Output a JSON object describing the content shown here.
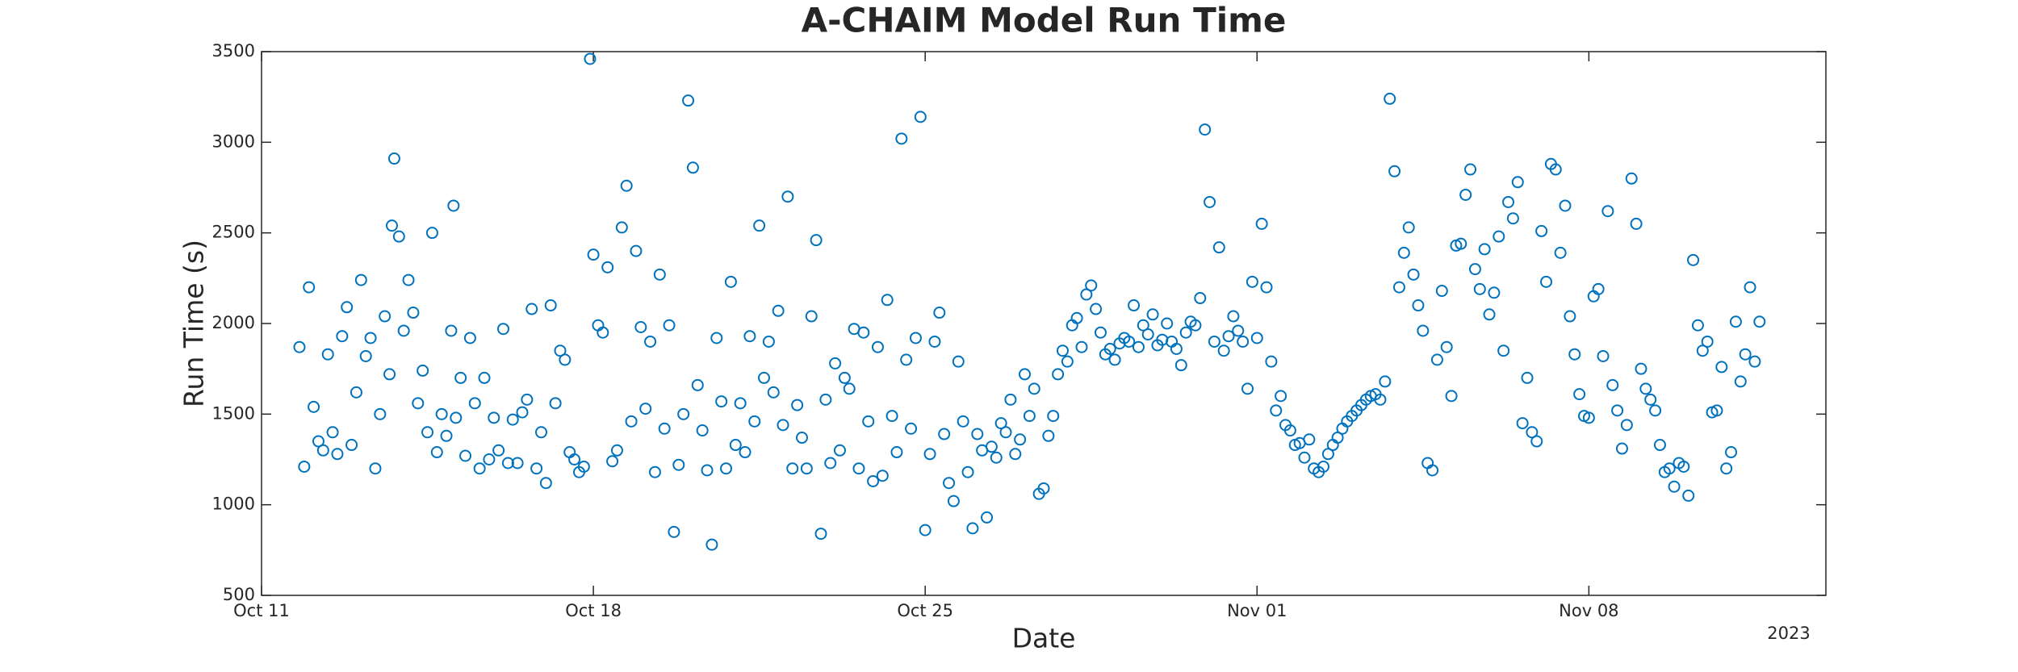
{
  "chart_data": {
    "type": "scatter",
    "title": "A-CHAIM Model Run Time",
    "xlabel": "Date",
    "ylabel": "Run Time (s)",
    "x_year_label": "2023",
    "xlim": [
      0,
      33
    ],
    "ylim": [
      500,
      3500
    ],
    "xticks": [
      {
        "value": 0,
        "label": "Oct 11"
      },
      {
        "value": 7,
        "label": "Oct 18"
      },
      {
        "value": 14,
        "label": "Oct 25"
      },
      {
        "value": 21,
        "label": "Nov 01"
      },
      {
        "value": 28,
        "label": "Nov 08"
      }
    ],
    "yticks": [
      500,
      1000,
      1500,
      2000,
      2500,
      3000,
      3500
    ],
    "grid": false,
    "series": [
      {
        "name": "Run Time",
        "color": "#0072bd",
        "x": [
          0.8,
          0.9,
          1.0,
          1.1,
          1.2,
          1.3,
          1.4,
          1.5,
          1.6,
          1.7,
          1.8,
          1.9,
          2.0,
          2.1,
          2.2,
          2.3,
          2.4,
          2.5,
          2.6,
          2.7,
          2.75,
          2.8,
          2.9,
          3.0,
          3.1,
          3.2,
          3.3,
          3.4,
          3.5,
          3.6,
          3.7,
          3.8,
          3.9,
          4.0,
          4.05,
          4.1,
          4.2,
          4.3,
          4.4,
          4.5,
          4.6,
          4.7,
          4.8,
          4.9,
          5.0,
          5.1,
          5.2,
          5.3,
          5.4,
          5.5,
          5.6,
          5.7,
          5.8,
          5.9,
          6.0,
          6.1,
          6.2,
          6.3,
          6.4,
          6.5,
          6.6,
          6.7,
          6.8,
          6.93,
          7.0,
          7.1,
          7.2,
          7.3,
          7.4,
          7.5,
          7.6,
          7.7,
          7.8,
          7.9,
          8.0,
          8.1,
          8.2,
          8.3,
          8.4,
          8.5,
          8.6,
          8.7,
          8.8,
          8.9,
          9.0,
          9.1,
          9.2,
          9.3,
          9.4,
          9.5,
          9.6,
          9.7,
          9.8,
          9.9,
          10.0,
          10.1,
          10.2,
          10.3,
          10.4,
          10.5,
          10.6,
          10.7,
          10.8,
          10.9,
          11.0,
          11.1,
          11.2,
          11.3,
          11.4,
          11.5,
          11.6,
          11.7,
          11.8,
          11.9,
          12.0,
          12.1,
          12.2,
          12.3,
          12.4,
          12.5,
          12.6,
          12.7,
          12.8,
          12.9,
          13.0,
          13.1,
          13.2,
          13.3,
          13.4,
          13.5,
          13.6,
          13.7,
          13.8,
          13.9,
          14.0,
          14.1,
          14.2,
          14.3,
          14.4,
          14.5,
          14.6,
          14.7,
          14.8,
          14.9,
          15.0,
          15.1,
          15.2,
          15.3,
          15.4,
          15.5,
          15.6,
          15.7,
          15.8,
          15.9,
          16.0,
          16.1,
          16.2,
          16.3,
          16.4,
          16.5,
          16.6,
          16.7,
          16.8,
          16.9,
          17.0,
          17.1,
          17.2,
          17.3,
          17.4,
          17.5,
          17.6,
          17.7,
          17.8,
          17.9,
          18.0,
          18.1,
          18.2,
          18.3,
          18.4,
          18.5,
          18.6,
          18.7,
          18.8,
          18.9,
          19.0,
          19.1,
          19.2,
          19.3,
          19.4,
          19.5,
          19.6,
          19.7,
          19.8,
          19.9,
          20.0,
          20.1,
          20.2,
          20.3,
          20.4,
          20.5,
          20.6,
          20.7,
          20.8,
          20.9,
          21.0,
          21.1,
          21.2,
          21.3,
          21.4,
          21.5,
          21.6,
          21.7,
          21.8,
          21.9,
          22.0,
          22.1,
          22.2,
          22.3,
          22.4,
          22.5,
          22.6,
          22.7,
          22.8,
          22.9,
          23.0,
          23.1,
          23.2,
          23.3,
          23.4,
          23.5,
          23.6,
          23.7,
          23.8,
          23.9,
          24.0,
          24.1,
          24.2,
          24.3,
          24.4,
          24.5,
          24.6,
          24.7,
          24.8,
          24.9,
          25.0,
          25.1,
          25.2,
          25.3,
          25.4,
          25.5,
          25.6,
          25.7,
          25.8,
          25.9,
          26.0,
          26.1,
          26.2,
          26.3,
          26.4,
          26.5,
          26.6,
          26.7,
          26.8,
          26.9,
          27.0,
          27.1,
          27.2,
          27.3,
          27.4,
          27.5,
          27.6,
          27.7,
          27.8,
          27.9,
          28.0,
          28.1,
          28.2,
          28.3,
          28.4,
          28.5,
          28.6,
          28.7,
          28.8,
          28.9,
          29.0,
          29.1,
          29.2,
          29.3,
          29.4,
          29.5,
          29.6,
          29.7,
          29.8,
          29.9,
          30.0,
          30.1,
          30.2,
          30.3,
          30.4,
          30.5,
          30.6,
          30.7,
          30.8,
          30.9,
          31.0,
          31.1,
          31.2,
          31.3,
          31.4,
          31.5,
          31.6
        ],
        "values": [
          1870,
          1210,
          2200,
          1540,
          1350,
          1300,
          1830,
          1400,
          1280,
          1930,
          2090,
          1330,
          1620,
          2240,
          1820,
          1920,
          1200,
          1500,
          2040,
          1720,
          2540,
          2910,
          2480,
          1960,
          2240,
          2060,
          1560,
          1740,
          1400,
          2500,
          1290,
          1500,
          1380,
          1960,
          2650,
          1480,
          1700,
          1270,
          1920,
          1560,
          1200,
          1700,
          1250,
          1480,
          1300,
          1970,
          1230,
          1470,
          1230,
          1510,
          1580,
          2080,
          1200,
          1400,
          1120,
          2100,
          1560,
          1850,
          1800,
          1290,
          1250,
          1180,
          1210,
          3460,
          2380,
          1990,
          1950,
          2310,
          1240,
          1300,
          2530,
          2760,
          1460,
          2400,
          1980,
          1530,
          1900,
          1180,
          2270,
          1420,
          1990,
          850,
          1220,
          1500,
          3230,
          2860,
          1660,
          1410,
          1190,
          780,
          1920,
          1570,
          1200,
          2230,
          1330,
          1560,
          1290,
          1930,
          1460,
          2540,
          1700,
          1900,
          1620,
          2070,
          1440,
          2700,
          1200,
          1550,
          1370,
          1200,
          2040,
          2460,
          840,
          1580,
          1230,
          1780,
          1300,
          1700,
          1640,
          1970,
          1200,
          1950,
          1460,
          1130,
          1870,
          1160,
          2130,
          1490,
          1290,
          3020,
          1800,
          1420,
          1920,
          3140,
          860,
          1280,
          1900,
          2060,
          1390,
          1120,
          1020,
          1790,
          1460,
          1180,
          870,
          1390,
          1300,
          930,
          1320,
          1260,
          1450,
          1400,
          1580,
          1280,
          1360,
          1720,
          1490,
          1640,
          1060,
          1090,
          1380,
          1490,
          1720,
          1850,
          1790,
          1990,
          2030,
          1870,
          2160,
          2210,
          2080,
          1950,
          1830,
          1860,
          1800,
          1890,
          1920,
          1900,
          2100,
          1870,
          1990,
          1940,
          2050,
          1880,
          1910,
          2000,
          1900,
          1860,
          1770,
          1950,
          2010,
          1990,
          2140,
          3070,
          2670,
          1900,
          2420,
          1850,
          1930,
          2040,
          1960,
          1900,
          1640,
          2230,
          1920,
          2550,
          2200,
          1790,
          1520,
          1600,
          1440,
          1410,
          1330,
          1340,
          1260,
          1360,
          1200,
          1180,
          1210,
          1280,
          1330,
          1370,
          1420,
          1460,
          1490,
          1520,
          1550,
          1580,
          1600,
          1610,
          1580,
          1680,
          3240,
          2840,
          2200,
          2390,
          2530,
          2270,
          2100,
          1960,
          1230,
          1190,
          1800,
          2180,
          1870,
          1600,
          2430,
          2440,
          2710,
          2850,
          2300,
          2190,
          2410,
          2050,
          2170,
          2480,
          1850,
          2670,
          2580,
          2780,
          1450,
          1700,
          1400,
          1350,
          2510,
          2230,
          2880,
          2850,
          2390,
          2650,
          2040,
          1830,
          1610,
          1490,
          1480,
          2150,
          2190,
          1820,
          2620,
          1660,
          1520,
          1310,
          1440,
          2800,
          2550,
          1750,
          1640,
          1580,
          1520,
          1330,
          1180,
          1200,
          1100,
          1230,
          1210,
          1050,
          2350,
          1990,
          1850,
          1900,
          1510,
          1520,
          1760,
          1200,
          1290,
          2010,
          1680,
          1830,
          2200,
          1790,
          2010
        ]
      }
    ]
  }
}
